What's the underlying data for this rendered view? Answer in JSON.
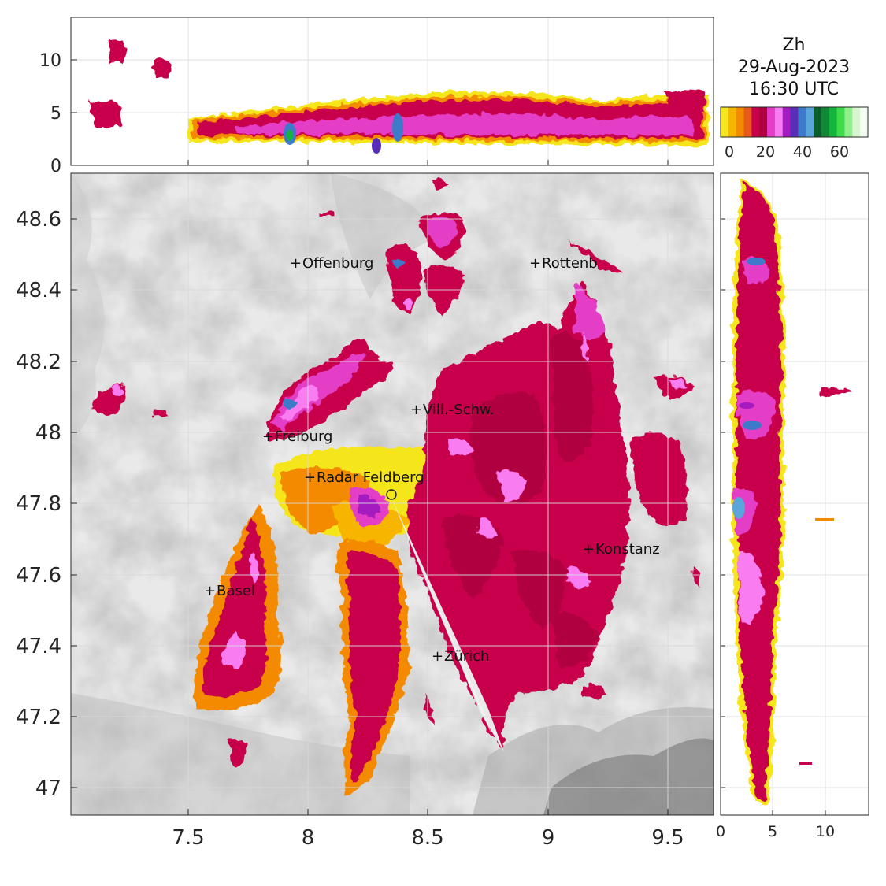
{
  "title": {
    "variable": "Zh",
    "date": "29-Aug-2023",
    "time": "16:30 UTC"
  },
  "colorbar": {
    "ticks": [
      "0",
      "20",
      "40",
      "60"
    ],
    "colors": [
      "#f5e61e",
      "#f7b500",
      "#f38a00",
      "#e8591b",
      "#c8004b",
      "#b00040",
      "#e43cc6",
      "#f97bf0",
      "#a41cc0",
      "#5a2db8",
      "#3d7ac9",
      "#5aa5d9",
      "#0a5e2a",
      "#0f8a32",
      "#13b53b",
      "#3fdc4a",
      "#8eee8a",
      "#d7f8cf",
      "#f4fdf2"
    ]
  },
  "main_map": {
    "x_ticks": [
      "7.5",
      "8",
      "8.5",
      "9",
      "9.5"
    ],
    "y_ticks": [
      "48.6",
      "48.4",
      "48.2",
      "48",
      "47.8",
      "47.6",
      "47.4",
      "47.2",
      "47"
    ],
    "cities": [
      {
        "name": "Offenburg",
        "lon": 7.94,
        "lat": 48.47
      },
      {
        "name": "Rottenb",
        "lon": 8.93,
        "lat": 48.47
      },
      {
        "name": "Vill.-Schw.",
        "lon": 8.45,
        "lat": 48.06
      },
      {
        "name": "Freiburg",
        "lon": 7.82,
        "lat": 47.99
      },
      {
        "name": "Radar Feldberg",
        "lon": 7.99,
        "lat": 47.87
      },
      {
        "name": "Konstanz",
        "lon": 9.16,
        "lat": 47.67
      },
      {
        "name": "Basel",
        "lon": 7.57,
        "lat": 47.55
      },
      {
        "name": "Zürich",
        "lon": 8.54,
        "lat": 47.37
      }
    ],
    "radar_site": {
      "lon": 8.35,
      "lat": 47.82
    }
  },
  "top_panel": {
    "y_ticks": [
      "10",
      "5",
      "0"
    ]
  },
  "side_panel": {
    "x_ticks": [
      "0",
      "5",
      "10"
    ]
  }
}
